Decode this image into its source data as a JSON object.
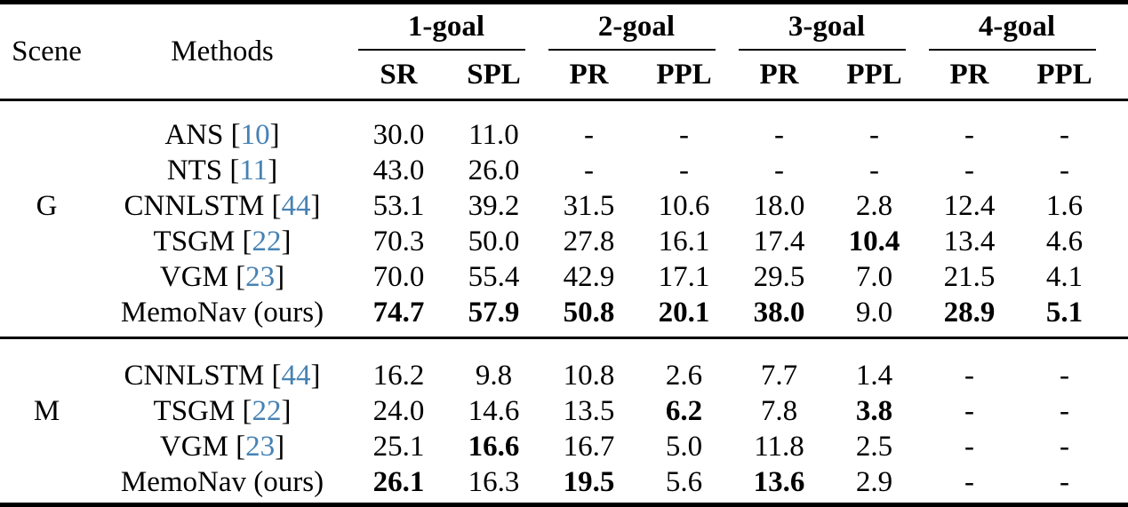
{
  "table": {
    "header": {
      "scene": "Scene",
      "methods": "Methods",
      "goal_groups": [
        {
          "label": "1-goal",
          "cols": [
            "SR",
            "SPL"
          ]
        },
        {
          "label": "2-goal",
          "cols": [
            "PR",
            "PPL"
          ]
        },
        {
          "label": "3-goal",
          "cols": [
            "PR",
            "PPL"
          ]
        },
        {
          "label": "4-goal",
          "cols": [
            "PR",
            "PPL"
          ]
        }
      ]
    },
    "scene_groups": [
      {
        "scene": "G",
        "rows": [
          {
            "pre": "ANS [",
            "cite": "10",
            "post": "]",
            "values": [
              "30.0",
              "11.0",
              "-",
              "-",
              "-",
              "-",
              "-",
              "-"
            ]
          },
          {
            "pre": "NTS [",
            "cite": "11",
            "post": "]",
            "values": [
              "43.0",
              "26.0",
              "-",
              "-",
              "-",
              "-",
              "-",
              "-"
            ]
          },
          {
            "pre": "CNNLSTM [",
            "cite": "44",
            "post": "]",
            "values": [
              "53.1",
              "39.2",
              "31.5",
              "10.6",
              "18.0",
              "2.8",
              "12.4",
              "1.6"
            ]
          },
          {
            "pre": "TSGM [",
            "cite": "22",
            "post": "]",
            "values": [
              "70.3",
              "50.0",
              "27.8",
              "16.1",
              "17.4",
              "10.4",
              "13.4",
              "4.6"
            ]
          },
          {
            "pre": "VGM [",
            "cite": "23",
            "post": "]",
            "values": [
              "70.0",
              "55.4",
              "42.9",
              "17.1",
              "29.5",
              "7.0",
              "21.5",
              "4.1"
            ]
          },
          {
            "pre": "MemoNav (ours)",
            "cite": "",
            "post": "",
            "values": [
              "74.7",
              "57.9",
              "50.8",
              "20.1",
              "38.0",
              "9.0",
              "28.9",
              "5.1"
            ]
          }
        ]
      },
      {
        "scene": "M",
        "rows": [
          {
            "pre": "CNNLSTM [",
            "cite": "44",
            "post": "]",
            "values": [
              "16.2",
              "9.8",
              "10.8",
              "2.6",
              "7.7",
              "1.4",
              "-",
              "-"
            ]
          },
          {
            "pre": "TSGM [",
            "cite": "22",
            "post": "]",
            "values": [
              "24.0",
              "14.6",
              "13.5",
              "6.2",
              "7.8",
              "3.8",
              "-",
              "-"
            ]
          },
          {
            "pre": "VGM [",
            "cite": "23",
            "post": "]",
            "values": [
              "25.1",
              "16.6",
              "16.7",
              "5.0",
              "11.8",
              "2.5",
              "-",
              "-"
            ]
          },
          {
            "pre": "MemoNav (ours)",
            "cite": "",
            "post": "",
            "values": [
              "26.1",
              "16.3",
              "19.5",
              "5.6",
              "13.6",
              "2.9",
              "-",
              "-"
            ]
          }
        ]
      }
    ]
  },
  "colors": {
    "citation_link": "#4682b4",
    "text": "#000000",
    "rule": "#000000"
  }
}
